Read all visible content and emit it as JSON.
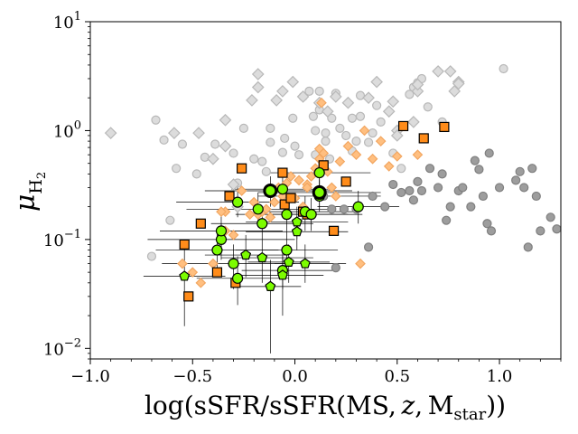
{
  "chart_data": {
    "type": "scatter",
    "title": "",
    "xlabel": "log(sSFR/sSFR(MS, z, Mstar))",
    "ylabel": "μH2",
    "xscale": "linear",
    "yscale": "log",
    "xlim": [
      -1.0,
      1.3
    ],
    "ylim": [
      0.008,
      10
    ],
    "x_ticks": [
      {
        "value": -1.0,
        "label": "−1.0"
      },
      {
        "value": -0.5,
        "label": "−0.5"
      },
      {
        "value": 0.0,
        "label": "0.0"
      },
      {
        "value": 0.5,
        "label": "0.5"
      },
      {
        "value": 1.0,
        "label": "1.0"
      }
    ],
    "y_ticks": [
      {
        "value": 0.01,
        "base": "10",
        "exp": "−2"
      },
      {
        "value": 0.1,
        "base": "10",
        "exp": "−1"
      },
      {
        "value": 1,
        "base": "10",
        "exp": "0"
      },
      {
        "value": 10,
        "base": "10",
        "exp": "1"
      }
    ],
    "series": [
      {
        "name": "light grey circles",
        "marker": "circle",
        "size": 4.5,
        "fill": "#dcdcdc",
        "stroke": "#b8b8b8",
        "points": [
          [
            -0.7,
            0.07
          ],
          [
            -0.68,
            1.25
          ],
          [
            -0.64,
            0.82
          ],
          [
            -0.61,
            0.15
          ],
          [
            -0.58,
            0.45
          ],
          [
            -0.55,
            0.75
          ],
          [
            -0.48,
            0.4
          ],
          [
            -0.44,
            0.57
          ],
          [
            -0.39,
            0.75
          ],
          [
            -0.3,
            0.62
          ],
          [
            -0.28,
            0.33
          ],
          [
            -0.25,
            1.05
          ],
          [
            -0.2,
            0.55
          ],
          [
            -0.16,
            0.52
          ],
          [
            -0.14,
            0.42
          ],
          [
            -0.12,
            0.78
          ],
          [
            -0.12,
            1.05
          ],
          [
            -0.06,
            0.63
          ],
          [
            -0.01,
            1.3
          ],
          [
            0.02,
            0.6
          ],
          [
            0.04,
            2.05
          ],
          [
            0.07,
            2.3
          ],
          [
            0.09,
            1.35
          ],
          [
            0.1,
            0.6
          ],
          [
            0.1,
            1.0
          ],
          [
            0.12,
            2.3
          ],
          [
            0.12,
            1.55
          ],
          [
            0.15,
            0.8
          ],
          [
            0.17,
            0.55
          ],
          [
            0.18,
            1.3
          ],
          [
            0.2,
            2.2
          ],
          [
            0.22,
            1.05
          ],
          [
            0.25,
            0.9
          ],
          [
            0.28,
            0.65
          ],
          [
            0.28,
            1.3
          ],
          [
            0.32,
            1.35
          ],
          [
            0.32,
            2.1
          ],
          [
            0.36,
            0.78
          ],
          [
            0.38,
            0.95
          ],
          [
            0.4,
            1.7
          ],
          [
            0.42,
            1.2
          ],
          [
            0.48,
            0.62
          ],
          [
            0.52,
            0.45
          ],
          [
            0.56,
            2.15
          ],
          [
            0.58,
            2.5
          ],
          [
            0.6,
            2.75
          ],
          [
            0.62,
            3.0
          ],
          [
            0.65,
            1.65
          ],
          [
            0.72,
            1.2
          ],
          [
            1.02,
            3.7
          ],
          [
            0.0,
            0.72
          ],
          [
            -0.05,
            0.85
          ],
          [
            0.15,
            0.95
          ],
          [
            0.3,
            0.8
          ]
        ]
      },
      {
        "name": "light grey diamonds",
        "marker": "diamond",
        "size": 6,
        "fill": "#dcdcdc",
        "stroke": "#b8b8b8",
        "points": [
          [
            -0.9,
            0.95
          ],
          [
            -0.59,
            0.95
          ],
          [
            -0.47,
            0.95
          ],
          [
            -0.4,
            0.55
          ],
          [
            -0.34,
            1.25
          ],
          [
            -0.34,
            0.72
          ],
          [
            -0.3,
            0.32
          ],
          [
            -0.28,
            0.2
          ],
          [
            -0.21,
            1.9
          ],
          [
            -0.18,
            2.5
          ],
          [
            -0.18,
            3.3
          ],
          [
            -0.09,
            1.9
          ],
          [
            -0.06,
            2.3
          ],
          [
            -0.01,
            2.8
          ],
          [
            0.04,
            2.05
          ],
          [
            0.12,
            1.8
          ],
          [
            0.16,
            1.5
          ],
          [
            0.2,
            2.05
          ],
          [
            0.26,
            1.8
          ],
          [
            0.36,
            2.0
          ],
          [
            0.4,
            2.8
          ],
          [
            0.46,
            1.5
          ],
          [
            0.48,
            1.85
          ],
          [
            0.5,
            1.0
          ],
          [
            0.5,
            0.9
          ],
          [
            0.58,
            1.2
          ],
          [
            0.6,
            2.3
          ],
          [
            0.7,
            3.5
          ],
          [
            0.76,
            3.5
          ],
          [
            0.78,
            2.3
          ],
          [
            0.8,
            2.8
          ],
          [
            0.8,
            2.7
          ],
          [
            0.6,
            2.65
          ]
        ]
      },
      {
        "name": "dark grey circles",
        "marker": "circle",
        "size": 4.5,
        "fill": "#9d9d9d",
        "stroke": "#7f7f7f",
        "points": [
          [
            0.14,
            0.25
          ],
          [
            0.18,
            0.19
          ],
          [
            0.2,
            0.055
          ],
          [
            0.24,
            0.19
          ],
          [
            0.3,
            0.19
          ],
          [
            0.36,
            0.085
          ],
          [
            0.38,
            0.25
          ],
          [
            0.44,
            0.2
          ],
          [
            0.48,
            0.32
          ],
          [
            0.52,
            0.27
          ],
          [
            0.56,
            0.28
          ],
          [
            0.58,
            0.23
          ],
          [
            0.6,
            0.34
          ],
          [
            0.62,
            0.28
          ],
          [
            0.66,
            0.45
          ],
          [
            0.7,
            0.3
          ],
          [
            0.72,
            0.4
          ],
          [
            0.74,
            0.15
          ],
          [
            0.76,
            0.2
          ],
          [
            0.8,
            0.28
          ],
          [
            0.82,
            0.3
          ],
          [
            0.86,
            0.2
          ],
          [
            0.88,
            0.53
          ],
          [
            0.9,
            0.44
          ],
          [
            0.92,
            0.25
          ],
          [
            0.94,
            0.14
          ],
          [
            0.96,
            0.12
          ],
          [
            1.0,
            0.3
          ],
          [
            1.08,
            0.35
          ],
          [
            1.1,
            0.42
          ],
          [
            1.12,
            0.3
          ],
          [
            1.14,
            0.085
          ],
          [
            1.16,
            0.45
          ],
          [
            1.18,
            0.25
          ],
          [
            1.2,
            0.12
          ],
          [
            1.25,
            0.16
          ],
          [
            1.28,
            0.125
          ],
          [
            0.95,
            0.62
          ]
        ]
      },
      {
        "name": "orange diamonds",
        "marker": "diamond",
        "size": 5,
        "fill": "#ffbf80",
        "stroke": "#f2a660",
        "points": [
          [
            -0.55,
            0.06
          ],
          [
            -0.5,
            0.05
          ],
          [
            -0.46,
            0.04
          ],
          [
            -0.4,
            0.06
          ],
          [
            -0.34,
            0.12
          ],
          [
            -0.34,
            0.18
          ],
          [
            -0.3,
            0.11
          ],
          [
            -0.26,
            0.28
          ],
          [
            -0.22,
            0.17
          ],
          [
            -0.2,
            0.22
          ],
          [
            -0.18,
            0.17
          ],
          [
            -0.16,
            0.18
          ],
          [
            -0.14,
            0.19
          ],
          [
            -0.12,
            0.16
          ],
          [
            -0.1,
            0.22
          ],
          [
            -0.08,
            0.3
          ],
          [
            -0.06,
            0.25
          ],
          [
            -0.04,
            0.33
          ],
          [
            -0.02,
            0.38
          ],
          [
            0.0,
            0.24
          ],
          [
            0.02,
            0.35
          ],
          [
            0.04,
            0.2
          ],
          [
            0.06,
            0.32
          ],
          [
            0.08,
            0.38
          ],
          [
            0.1,
            0.45
          ],
          [
            0.12,
            0.55
          ],
          [
            0.14,
            0.48
          ],
          [
            0.12,
            0.68
          ],
          [
            0.14,
            0.62
          ],
          [
            0.16,
            0.42
          ],
          [
            0.18,
            0.3
          ],
          [
            0.2,
            0.25
          ],
          [
            0.22,
            0.52
          ],
          [
            0.26,
            0.72
          ],
          [
            0.3,
            0.6
          ],
          [
            0.32,
            0.06
          ],
          [
            0.34,
            1.0
          ],
          [
            0.38,
            0.55
          ],
          [
            0.42,
            0.8
          ],
          [
            0.46,
            0.47
          ],
          [
            0.5,
            0.58
          ],
          [
            0.6,
            0.6
          ],
          [
            0.13,
            1.8
          ],
          [
            0.06,
            0.3
          ],
          [
            -0.36,
            0.18
          ]
        ]
      },
      {
        "name": "orange squares",
        "marker": "square",
        "size": 5,
        "fill": "#ff8c1a",
        "stroke": "#000000",
        "points": [
          [
            -0.54,
            0.09
          ],
          [
            -0.52,
            0.03
          ],
          [
            -0.46,
            0.14
          ],
          [
            -0.38,
            0.05
          ],
          [
            -0.32,
            0.25
          ],
          [
            -0.29,
            0.04
          ],
          [
            -0.26,
            0.45
          ],
          [
            -0.06,
            0.41
          ],
          [
            -0.05,
            0.21
          ],
          [
            -0.02,
            0.24
          ],
          [
            0.04,
            0.18
          ],
          [
            0.06,
            0.17
          ],
          [
            0.14,
            0.48
          ],
          [
            0.19,
            0.12
          ],
          [
            0.25,
            0.34
          ],
          [
            0.53,
            1.1
          ],
          [
            0.63,
            0.85
          ],
          [
            0.73,
            1.08
          ]
        ]
      },
      {
        "name": "green circles",
        "marker": "circle",
        "size": 5.5,
        "fill": "#7cfc00",
        "stroke": "#000000",
        "points": [
          [
            -0.38,
            0.08
          ],
          [
            -0.36,
            0.1
          ],
          [
            -0.36,
            0.12
          ],
          [
            -0.3,
            0.06
          ],
          [
            -0.28,
            0.22
          ],
          [
            -0.28,
            0.044
          ],
          [
            -0.18,
            0.19
          ],
          [
            -0.16,
            0.14
          ],
          [
            -0.06,
            0.29
          ],
          [
            -0.04,
            0.17
          ],
          [
            -0.04,
            0.08
          ],
          [
            -0.06,
            0.052
          ],
          [
            0.05,
            0.18
          ],
          [
            0.08,
            0.17
          ],
          [
            0.12,
            0.41
          ],
          [
            0.12,
            0.25
          ],
          [
            0.31,
            0.2
          ]
        ]
      },
      {
        "name": "green pentagons",
        "marker": "pentagon",
        "size": 5.5,
        "fill": "#7cfc00",
        "stroke": "#000000",
        "points": [
          [
            -0.54,
            0.046
          ],
          [
            -0.24,
            0.072
          ],
          [
            -0.16,
            0.068
          ],
          [
            -0.12,
            0.037
          ],
          [
            -0.06,
            0.047
          ],
          [
            -0.03,
            0.062
          ],
          [
            0.01,
            0.118
          ],
          [
            0.01,
            0.145
          ],
          [
            0.05,
            0.06
          ]
        ]
      },
      {
        "name": "black circles",
        "marker": "circle",
        "size": 6.5,
        "fill": "#7cfc00",
        "stroke": "#000000",
        "strokeWidth": 3,
        "points": [
          [
            -0.12,
            0.28
          ],
          [
            0.12,
            0.27
          ]
        ]
      }
    ],
    "error_bars": [
      {
        "x": -0.38,
        "y": 0.08,
        "xlo": 0.3,
        "xhi": 0.3,
        "ylo": 0.05,
        "yhi": 0.12
      },
      {
        "x": -0.36,
        "y": 0.1,
        "xlo": 0.36,
        "xhi": 0.36,
        "ylo": 0.065,
        "yhi": 0.14
      },
      {
        "x": -0.36,
        "y": 0.12,
        "xlo": 0.3,
        "xhi": 0.3,
        "ylo": 0.085,
        "yhi": 0.17
      },
      {
        "x": -0.3,
        "y": 0.06,
        "xlo": 0.35,
        "xhi": 0.3,
        "ylo": 0.035,
        "yhi": 0.09
      },
      {
        "x": -0.28,
        "y": 0.22,
        "xlo": 0.3,
        "xhi": 0.3,
        "ylo": 0.16,
        "yhi": 0.3
      },
      {
        "x": -0.28,
        "y": 0.044,
        "xlo": 0.2,
        "xhi": 0.25,
        "ylo": 0.025,
        "yhi": 0.07
      },
      {
        "x": -0.18,
        "y": 0.19,
        "xlo": 0.35,
        "xhi": 0.35,
        "ylo": 0.13,
        "yhi": 0.27
      },
      {
        "x": -0.16,
        "y": 0.14,
        "xlo": 0.25,
        "xhi": 0.25,
        "ylo": 0.1,
        "yhi": 0.2
      },
      {
        "x": -0.06,
        "y": 0.29,
        "xlo": 0.25,
        "xhi": 0.25,
        "ylo": 0.2,
        "yhi": 0.4
      },
      {
        "x": -0.04,
        "y": 0.17,
        "xlo": 0.25,
        "xhi": 0.3,
        "ylo": 0.12,
        "yhi": 0.24
      },
      {
        "x": -0.04,
        "y": 0.08,
        "xlo": 0.25,
        "xhi": 0.25,
        "ylo": 0.05,
        "yhi": 0.12
      },
      {
        "x": -0.06,
        "y": 0.052,
        "xlo": 0.2,
        "xhi": 0.25,
        "ylo": 0.035,
        "yhi": 0.08
      },
      {
        "x": 0.05,
        "y": 0.18,
        "xlo": 0.25,
        "xhi": 0.25,
        "ylo": 0.12,
        "yhi": 0.25
      },
      {
        "x": 0.08,
        "y": 0.17,
        "xlo": 0.2,
        "xhi": 0.25,
        "ylo": 0.12,
        "yhi": 0.24
      },
      {
        "x": 0.12,
        "y": 0.41,
        "xlo": 0.25,
        "xhi": 0.25,
        "ylo": 0.3,
        "yhi": 0.55
      },
      {
        "x": 0.12,
        "y": 0.25,
        "xlo": 0.3,
        "xhi": 0.3,
        "ylo": 0.18,
        "yhi": 0.35
      },
      {
        "x": 0.31,
        "y": 0.2,
        "xlo": 0.2,
        "xhi": 0.2,
        "ylo": 0.14,
        "yhi": 0.28
      },
      {
        "x": -0.54,
        "y": 0.046,
        "xlo": 0.2,
        "xhi": 0.2,
        "ylo": 0.016,
        "yhi": 0.09
      },
      {
        "x": -0.24,
        "y": 0.072,
        "xlo": 0.2,
        "xhi": 0.2,
        "ylo": 0.045,
        "yhi": 0.11
      },
      {
        "x": -0.16,
        "y": 0.068,
        "xlo": 0.2,
        "xhi": 0.25,
        "ylo": 0.04,
        "yhi": 0.1
      },
      {
        "x": -0.12,
        "y": 0.037,
        "xlo": 0.15,
        "xhi": 0.15,
        "ylo": 0.009,
        "yhi": 0.065
      },
      {
        "x": -0.06,
        "y": 0.047,
        "xlo": 0.2,
        "xhi": 0.2,
        "ylo": 0.02,
        "yhi": 0.07
      },
      {
        "x": -0.03,
        "y": 0.062,
        "xlo": 0.2,
        "xhi": 0.2,
        "ylo": 0.04,
        "yhi": 0.09
      },
      {
        "x": 0.01,
        "y": 0.118,
        "xlo": 0.25,
        "xhi": 0.25,
        "ylo": 0.08,
        "yhi": 0.16
      },
      {
        "x": 0.01,
        "y": 0.145,
        "xlo": 0.25,
        "xhi": 0.25,
        "ylo": 0.1,
        "yhi": 0.2
      },
      {
        "x": 0.05,
        "y": 0.06,
        "xlo": 0.15,
        "xhi": 0.2,
        "ylo": 0.04,
        "yhi": 0.09
      },
      {
        "x": -0.12,
        "y": 0.28,
        "xlo": 0.32,
        "xhi": 0.4,
        "ylo": 0.2,
        "yhi": 0.38
      },
      {
        "x": 0.12,
        "y": 0.27,
        "xlo": 0.3,
        "xhi": 0.3,
        "ylo": 0.19,
        "yhi": 0.37
      }
    ]
  }
}
